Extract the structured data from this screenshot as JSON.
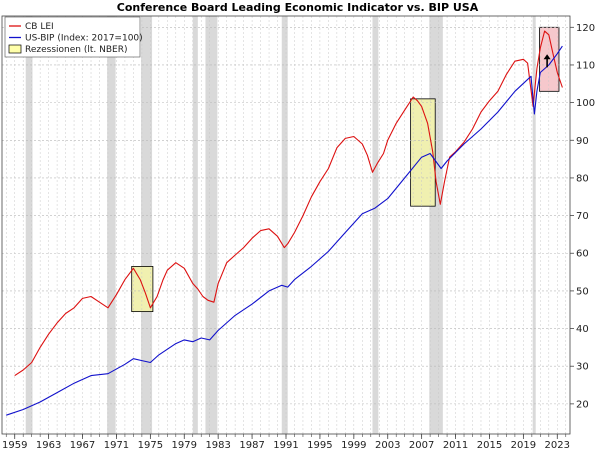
{
  "chart_data": {
    "type": "line",
    "title": "Conference Board Leading Economic Indicator vs. BIP USA",
    "xlabel": "",
    "ylabel": "",
    "xlim": [
      1957.5,
      2024.5
    ],
    "ylim": [
      12,
      123
    ],
    "x_ticks": [
      1959,
      1963,
      1967,
      1971,
      1975,
      1979,
      1983,
      1987,
      1991,
      1995,
      1999,
      2003,
      2007,
      2011,
      2015,
      2019,
      2023
    ],
    "y_ticks": [
      20,
      30,
      40,
      50,
      60,
      70,
      80,
      90,
      100,
      110,
      120
    ],
    "y_axis_side": "right",
    "grid": true,
    "legend_position": "top-left",
    "legend": [
      {
        "label": "CB LEI",
        "kind": "line",
        "color": "#dd1111"
      },
      {
        "label": "US-BIP (Index: 2017=100)",
        "kind": "line",
        "color": "#1111cc"
      },
      {
        "label": "Rezessionen (lt. NBER)",
        "kind": "box",
        "color": "#ffffaa"
      }
    ],
    "recessions": [
      [
        1960.3,
        1961.1
      ],
      [
        1969.9,
        1970.9
      ],
      [
        1973.9,
        1975.2
      ],
      [
        1980.0,
        1980.6
      ],
      [
        1981.5,
        1982.9
      ],
      [
        1990.5,
        1991.2
      ],
      [
        2001.2,
        2001.9
      ],
      [
        2007.9,
        2009.5
      ],
      [
        2020.1,
        2020.4
      ]
    ],
    "highlight_boxes": [
      {
        "x": [
          1972.8,
          1975.3
        ],
        "y": [
          44.5,
          56.5
        ],
        "fill": "#f0f0b0"
      },
      {
        "x": [
          2005.7,
          2008.6
        ],
        "y": [
          72.5,
          101.0
        ],
        "fill": "#f0f0b0"
      },
      {
        "x": [
          2020.9,
          2023.2
        ],
        "y": [
          103.0,
          120.0
        ],
        "fill": "#f6c8cc"
      }
    ],
    "annotations": [
      {
        "kind": "arrow-up",
        "x": 2021.8,
        "y": 111.5
      }
    ],
    "series": [
      {
        "name": "CB LEI",
        "color": "#dd1111",
        "x": [
          1959.0,
          1960.0,
          1961.0,
          1962.0,
          1963.0,
          1964.0,
          1965.0,
          1966.0,
          1967.0,
          1968.0,
          1969.0,
          1970.0,
          1971.0,
          1972.0,
          1973.0,
          1973.8,
          1974.4,
          1975.0,
          1975.8,
          1976.5,
          1977.0,
          1978.0,
          1979.0,
          1980.0,
          1980.6,
          1981.2,
          1981.8,
          1982.5,
          1983.0,
          1984.0,
          1985.0,
          1986.0,
          1987.0,
          1988.0,
          1989.0,
          1990.0,
          1990.8,
          1991.2,
          1992.0,
          1993.0,
          1994.0,
          1995.0,
          1996.0,
          1997.0,
          1998.0,
          1999.0,
          2000.0,
          2000.6,
          2001.2,
          2001.8,
          2002.5,
          2003.0,
          2004.0,
          2005.0,
          2006.0,
          2006.5,
          2007.0,
          2007.7,
          2008.3,
          2008.7,
          2009.2,
          2009.7,
          2010.3,
          2011.0,
          2012.0,
          2013.0,
          2014.0,
          2015.0,
          2016.0,
          2017.0,
          2018.0,
          2019.0,
          2019.5,
          2020.15,
          2020.3,
          2020.6,
          2021.0,
          2021.5,
          2022.0,
          2022.5,
          2023.0,
          2023.6
        ],
        "values": [
          27.5,
          29.0,
          31.0,
          35.0,
          38.5,
          41.5,
          44.0,
          45.5,
          48.0,
          48.5,
          47.0,
          45.5,
          49.0,
          53.0,
          56.0,
          53.0,
          49.5,
          45.5,
          48.5,
          53.0,
          55.5,
          57.5,
          56.0,
          52.0,
          50.5,
          48.5,
          47.5,
          47.0,
          52.0,
          57.5,
          59.5,
          61.5,
          64.0,
          66.0,
          66.5,
          64.5,
          61.5,
          62.5,
          65.5,
          70.0,
          75.0,
          79.0,
          82.5,
          88.0,
          90.5,
          91.0,
          89.0,
          86.0,
          81.5,
          84.0,
          86.5,
          90.0,
          94.5,
          98.0,
          101.5,
          100.5,
          99.0,
          94.5,
          87.0,
          79.0,
          73.0,
          79.0,
          85.5,
          87.0,
          89.5,
          93.0,
          97.5,
          100.5,
          103.0,
          107.5,
          111.0,
          111.5,
          110.5,
          99.0,
          102.5,
          109.0,
          114.5,
          119.0,
          118.0,
          113.0,
          108.0,
          104.0
        ]
      },
      {
        "name": "US-BIP (Index: 2017=100)",
        "color": "#1111cc",
        "x": [
          1958.0,
          1960.0,
          1962.0,
          1964.0,
          1966.0,
          1968.0,
          1970.0,
          1972.0,
          1973.0,
          1974.0,
          1975.0,
          1976.0,
          1978.0,
          1979.0,
          1980.0,
          1981.0,
          1982.0,
          1983.0,
          1985.0,
          1987.0,
          1989.0,
          1990.5,
          1991.2,
          1992.0,
          1994.0,
          1996.0,
          1998.0,
          2000.0,
          2001.5,
          2003.0,
          2005.0,
          2007.0,
          2008.0,
          2009.3,
          2010.0,
          2012.0,
          2014.0,
          2016.0,
          2018.0,
          2019.9,
          2020.3,
          2020.6,
          2021.0,
          2022.0,
          2023.0,
          2023.6
        ],
        "values": [
          17.0,
          18.5,
          20.5,
          23.0,
          25.5,
          27.5,
          28.0,
          30.5,
          32.0,
          31.5,
          31.0,
          33.0,
          36.0,
          37.0,
          36.5,
          37.5,
          37.0,
          39.5,
          43.5,
          46.5,
          50.0,
          51.5,
          51.0,
          53.0,
          56.5,
          60.5,
          65.5,
          70.5,
          72.0,
          74.5,
          80.0,
          85.5,
          86.5,
          82.5,
          84.5,
          89.0,
          93.0,
          97.5,
          103.0,
          107.0,
          97.0,
          103.0,
          108.0,
          110.0,
          113.0,
          115.0
        ]
      }
    ]
  }
}
